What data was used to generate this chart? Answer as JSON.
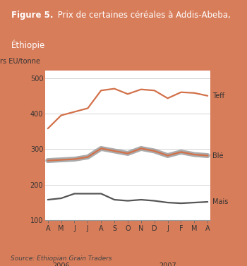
{
  "title_bold": "Figure 5.",
  "title_rest": " Prix de certaines céréales à Addis-Abeba,\nÉthiopie",
  "ylabel": "Dollars EU/tonne",
  "source": "Source: Ethiopian Grain Traders",
  "x_labels": [
    "A",
    "M",
    "J",
    "J",
    "A",
    "S",
    "O",
    "N",
    "D",
    "J",
    "F",
    "M",
    "A"
  ],
  "ylim": [
    100,
    520
  ],
  "yticks": [
    100,
    200,
    300,
    400,
    500
  ],
  "header_color": "#D87D5A",
  "header_text_color": "#ffffff",
  "border_color": "#D87D5A",
  "teff_color": "#D2714A",
  "ble_color": "#D2714A",
  "mais_color": "#555555",
  "ble_grey_color": "#aaaaaa",
  "teff_data": [
    358,
    395,
    405,
    415,
    465,
    470,
    455,
    468,
    465,
    443,
    460,
    458,
    450
  ],
  "ble_data": [
    268,
    270,
    272,
    278,
    302,
    295,
    288,
    302,
    295,
    282,
    292,
    285,
    282
  ],
  "mais_data": [
    158,
    162,
    175,
    175,
    175,
    158,
    155,
    158,
    155,
    150,
    148,
    150,
    152
  ],
  "label_teff": "Teff",
  "label_ble": "Blé",
  "label_mais": "Mais",
  "year2006_idx": 1,
  "year2007_idx": 9
}
